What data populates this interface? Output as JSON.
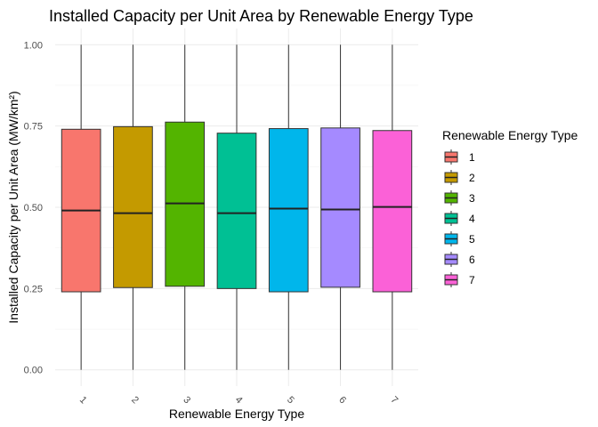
{
  "chart_data": {
    "type": "box",
    "title": "Installed Capacity per Unit Area by Renewable Energy Type",
    "xlabel": "Renewable Energy Type",
    "ylabel": "Installed Capacity per Unit Area (MW/km²)",
    "ylim": [
      -0.05,
      1.05
    ],
    "yticks": [
      "0.00",
      "0.25",
      "0.50",
      "0.75",
      "1.00"
    ],
    "ytick_values": [
      0,
      0.25,
      0.5,
      0.75,
      1.0
    ],
    "grid": true,
    "legend": {
      "title": "Renewable Energy Type",
      "position": "right"
    },
    "categories": [
      "1",
      "2",
      "3",
      "4",
      "5",
      "6",
      "7"
    ],
    "boxes": [
      {
        "name": "1",
        "min": 0.0,
        "q1": 0.24,
        "median": 0.49,
        "q3": 0.74,
        "max": 1.0,
        "color": "#F8766D"
      },
      {
        "name": "2",
        "min": 0.0,
        "q1": 0.253,
        "median": 0.482,
        "q3": 0.748,
        "max": 1.0,
        "color": "#C49A00"
      },
      {
        "name": "3",
        "min": 0.0,
        "q1": 0.257,
        "median": 0.512,
        "q3": 0.762,
        "max": 1.0,
        "color": "#53B400"
      },
      {
        "name": "4",
        "min": 0.0,
        "q1": 0.25,
        "median": 0.482,
        "q3": 0.728,
        "max": 1.0,
        "color": "#00C094"
      },
      {
        "name": "5",
        "min": 0.0,
        "q1": 0.24,
        "median": 0.496,
        "q3": 0.742,
        "max": 1.0,
        "color": "#00B6EB"
      },
      {
        "name": "6",
        "min": 0.0,
        "q1": 0.254,
        "median": 0.493,
        "q3": 0.744,
        "max": 1.0,
        "color": "#A58AFF"
      },
      {
        "name": "7",
        "min": 0.0,
        "q1": 0.24,
        "median": 0.501,
        "q3": 0.736,
        "max": 1.0,
        "color": "#FB61D7"
      }
    ]
  }
}
